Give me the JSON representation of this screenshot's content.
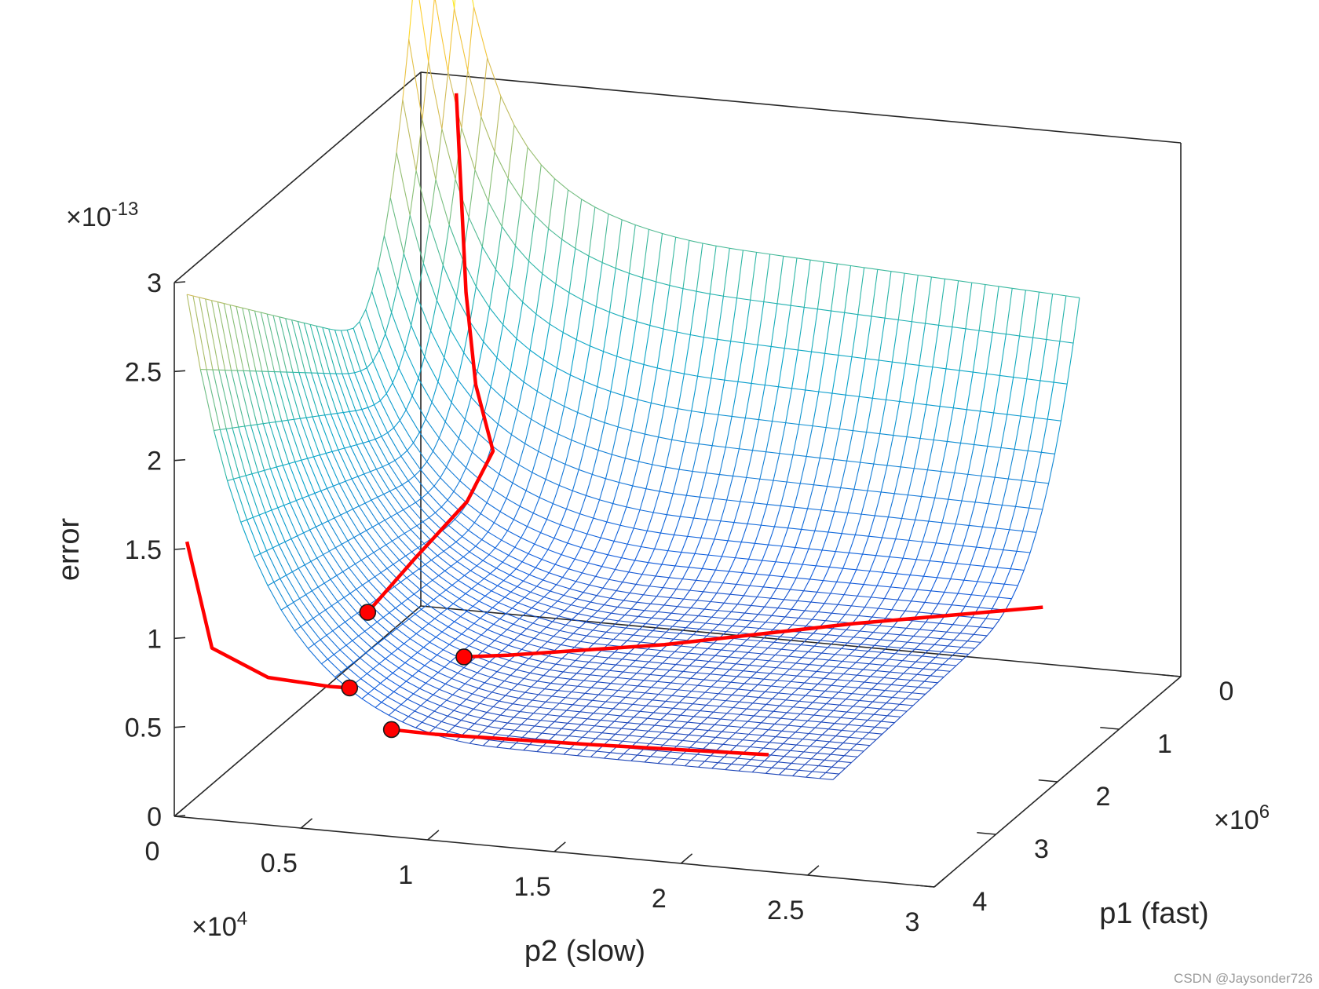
{
  "chart_data": {
    "type": "surface3d",
    "zlabel": "error",
    "xlabel": "p2 (slow)",
    "ylabel": "p1 (fast)",
    "x_multiplier": {
      "base": "×10",
      "exp": "4"
    },
    "y_multiplier": {
      "base": "×10",
      "exp": "6"
    },
    "z_multiplier": {
      "base": "×10",
      "exp": "-13"
    },
    "xlim": [
      0,
      30000
    ],
    "ylim": [
      0,
      4000000
    ],
    "zlim": [
      0,
      3
    ],
    "x_ticks": [
      {
        "value": 0,
        "label": "0"
      },
      {
        "value": 5000,
        "label": "0.5"
      },
      {
        "value": 10000,
        "label": "1"
      },
      {
        "value": 15000,
        "label": "1.5"
      },
      {
        "value": 20000,
        "label": "2"
      },
      {
        "value": 25000,
        "label": "2.5"
      },
      {
        "value": 30000,
        "label": "3"
      }
    ],
    "y_ticks": [
      {
        "value": 0,
        "label": "0"
      },
      {
        "value": 1000000,
        "label": "1"
      },
      {
        "value": 2000000,
        "label": "2"
      },
      {
        "value": 3000000,
        "label": "3"
      },
      {
        "value": 4000000,
        "label": "4"
      }
    ],
    "z_ticks": [
      {
        "value": 0,
        "label": "0"
      },
      {
        "value": 0.5,
        "label": "0.5"
      },
      {
        "value": 1,
        "label": "1"
      },
      {
        "value": 1.5,
        "label": "1.5"
      },
      {
        "value": 2,
        "label": "2"
      },
      {
        "value": 2.5,
        "label": "2.5"
      },
      {
        "value": 3,
        "label": "3"
      }
    ],
    "surface": {
      "x_range": [
        500,
        26000
      ],
      "y_range": [
        0,
        4000000
      ],
      "colormap": [
        "#352a87",
        "#0f5cdd",
        "#1481d6",
        "#06a4ca",
        "#2eb7a4",
        "#87bf77",
        "#d1bb59",
        "#fec832",
        "#f9fb0e"
      ],
      "color_zmax": 3.8
    },
    "paths": [
      {
        "name": "path-1",
        "color": "#ff0000",
        "points": [
          [
            1400,
            0,
            2.9
          ],
          [
            3000,
            500000,
            1.95
          ],
          [
            4600,
            1000000,
            1.6
          ],
          [
            6500,
            1500000,
            1.4
          ],
          [
            6200,
            1800000,
            1.2
          ],
          [
            5600,
            2400000,
            1.05
          ],
          [
            5200,
            3000000,
            0.92
          ]
        ],
        "end_marker": true
      },
      {
        "name": "path-2",
        "color": "#ff0000",
        "points": [
          [
            26500,
            800000,
            0.58
          ],
          [
            20000,
            1200000,
            0.52
          ],
          [
            14000,
            1800000,
            0.5
          ],
          [
            8800,
            2200000,
            0.49
          ],
          [
            7300,
            2300000,
            0.49
          ]
        ],
        "end_marker": true
      },
      {
        "name": "path-3",
        "color": "#ff0000",
        "points": [
          [
            22000,
            3400000,
            0.46
          ],
          [
            15000,
            3450000,
            0.44
          ],
          [
            9200,
            3550000,
            0.45
          ],
          [
            7600,
            3600000,
            0.47
          ]
        ],
        "end_marker": true
      },
      {
        "name": "path-4",
        "color": "#ff0000",
        "points": [
          [
            500,
            4000000,
            1.55
          ],
          [
            1000,
            3800000,
            0.9
          ],
          [
            2000,
            3300000,
            0.6
          ],
          [
            3500,
            2900000,
            0.45
          ],
          [
            4000,
            2800000,
            0.42
          ]
        ],
        "end_marker": true
      }
    ]
  },
  "watermark": "CSDN @Jaysonder726"
}
